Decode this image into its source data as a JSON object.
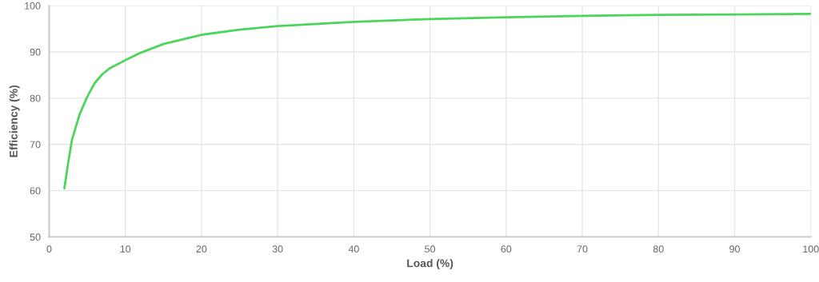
{
  "chart_data": {
    "type": "line",
    "xlabel": "Load (%)",
    "ylabel": "Efficiency (%)",
    "x": [
      2,
      2.5,
      3,
      4,
      5,
      6,
      7,
      8,
      10,
      12,
      15,
      20,
      25,
      30,
      40,
      50,
      60,
      70,
      80,
      90,
      100
    ],
    "series": [
      {
        "color": "#4cd55a",
        "values": [
          60.5,
          66,
          71,
          76.5,
          80.3,
          83.3,
          85.2,
          86.5,
          88.2,
          89.8,
          91.7,
          93.7,
          94.8,
          95.6,
          96.5,
          97.1,
          97.5,
          97.8,
          98.0,
          98.1,
          98.2
        ]
      }
    ],
    "xlim": [
      0,
      100
    ],
    "xticks": [
      0,
      10,
      20,
      30,
      40,
      50,
      60,
      70,
      80,
      90,
      100
    ],
    "ylim": [
      50,
      100
    ],
    "yticks": [
      50,
      60,
      70,
      80,
      90,
      100
    ],
    "grid": true,
    "marker": "none",
    "line_style": "solid"
  }
}
